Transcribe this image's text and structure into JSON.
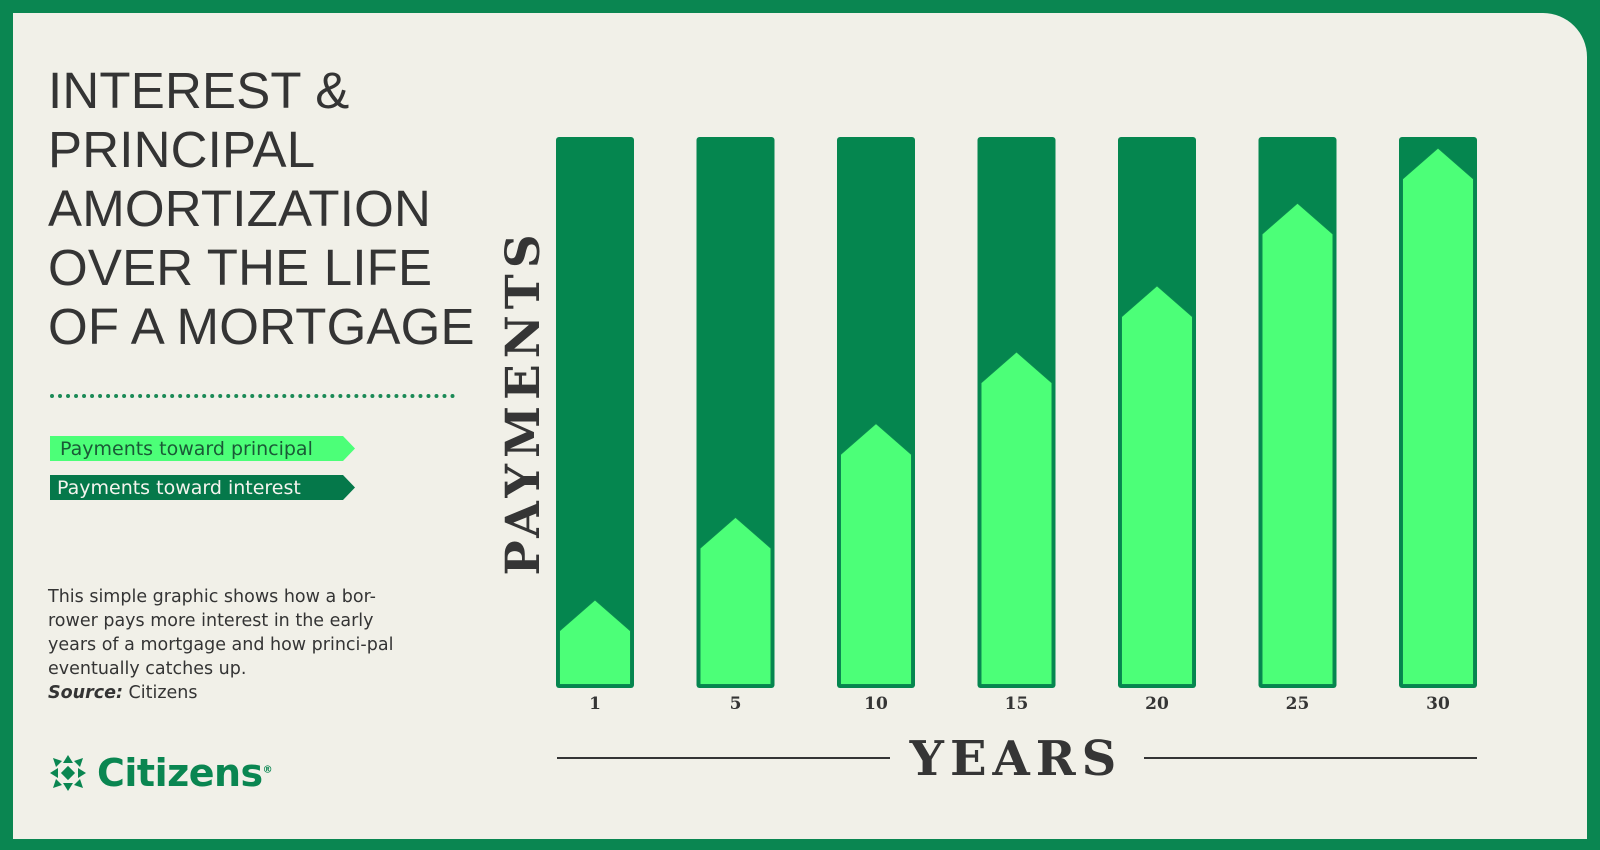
{
  "title_lines": [
    "INTEREST &",
    "PRINCIPAL",
    "AMORTIZATION",
    "OVER THE LIFE",
    "OF A MORTGAGE"
  ],
  "legend": {
    "principal": "Payments toward principal",
    "interest": "Payments toward interest"
  },
  "description": "This simple graphic shows how a bor-rower pays more interest in the early years of a mortgage and how princi-pal eventually catches up.",
  "source_label": "Source:",
  "source_value": "Citizens",
  "logo_text": "Citizens",
  "colors": {
    "border": "#0a8651",
    "background": "#f1f0e8",
    "interest": "#05864f",
    "principal": "#4cff78",
    "principal_stroke": "#0b8a50",
    "text": "#353535"
  },
  "chart_data": {
    "type": "bar",
    "stacked": true,
    "xlabel": "YEARS",
    "ylabel": "PAYMENTS",
    "categories": [
      "1",
      "5",
      "10",
      "15",
      "20",
      "25",
      "30"
    ],
    "ylim": [
      0,
      100
    ],
    "series": [
      {
        "name": "Payments toward principal",
        "values": [
          16,
          31,
          48,
          61,
          73,
          88,
          98
        ]
      },
      {
        "name": "Payments toward interest",
        "values": [
          84,
          69,
          52,
          39,
          27,
          12,
          2
        ]
      }
    ],
    "legend_position": "left"
  }
}
